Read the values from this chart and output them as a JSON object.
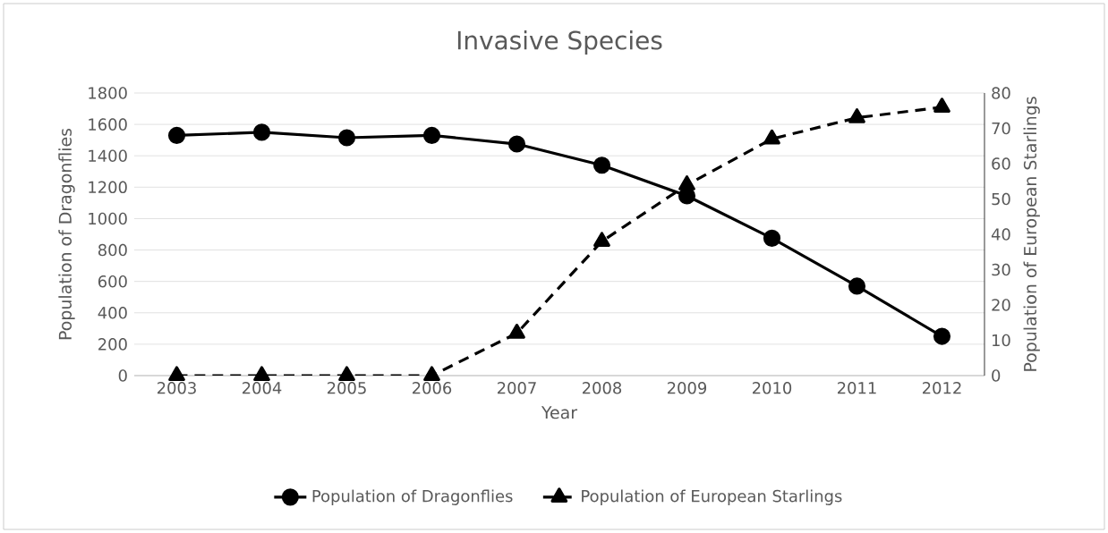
{
  "chart_data": {
    "type": "line",
    "title": "Invasive Species",
    "xlabel": "Year",
    "ylabel": "Population of Dragonflies",
    "y2label": "Population of European Starlings",
    "categories": [
      "2003",
      "2004",
      "2005",
      "2006",
      "2007",
      "2008",
      "2009",
      "2010",
      "2011",
      "2012"
    ],
    "series": [
      {
        "name": "Population of Dragonflies",
        "color": "#000000",
        "marker": "circle",
        "line_style": "solid",
        "values": [
          1530,
          1550,
          1515,
          1530,
          1475,
          1340,
          1145,
          875,
          570,
          250
        ]
      },
      {
        "name": "Population of European Starlings",
        "color": "#000000",
        "marker": "triangle",
        "line_style": "dashed",
        "axis": "y2",
        "values": [
          0,
          0,
          0,
          0,
          12,
          38,
          54,
          67,
          73,
          76
        ]
      }
    ],
    "ylim": [
      0,
      1800
    ],
    "yticks": [
      0,
      200,
      400,
      600,
      800,
      1000,
      1200,
      1400,
      1600,
      1800
    ],
    "y2lim": [
      0,
      80
    ],
    "y2ticks": [
      0,
      10,
      20,
      30,
      40,
      50,
      60,
      70,
      80
    ],
    "grid": "y",
    "legend": "bottom"
  }
}
